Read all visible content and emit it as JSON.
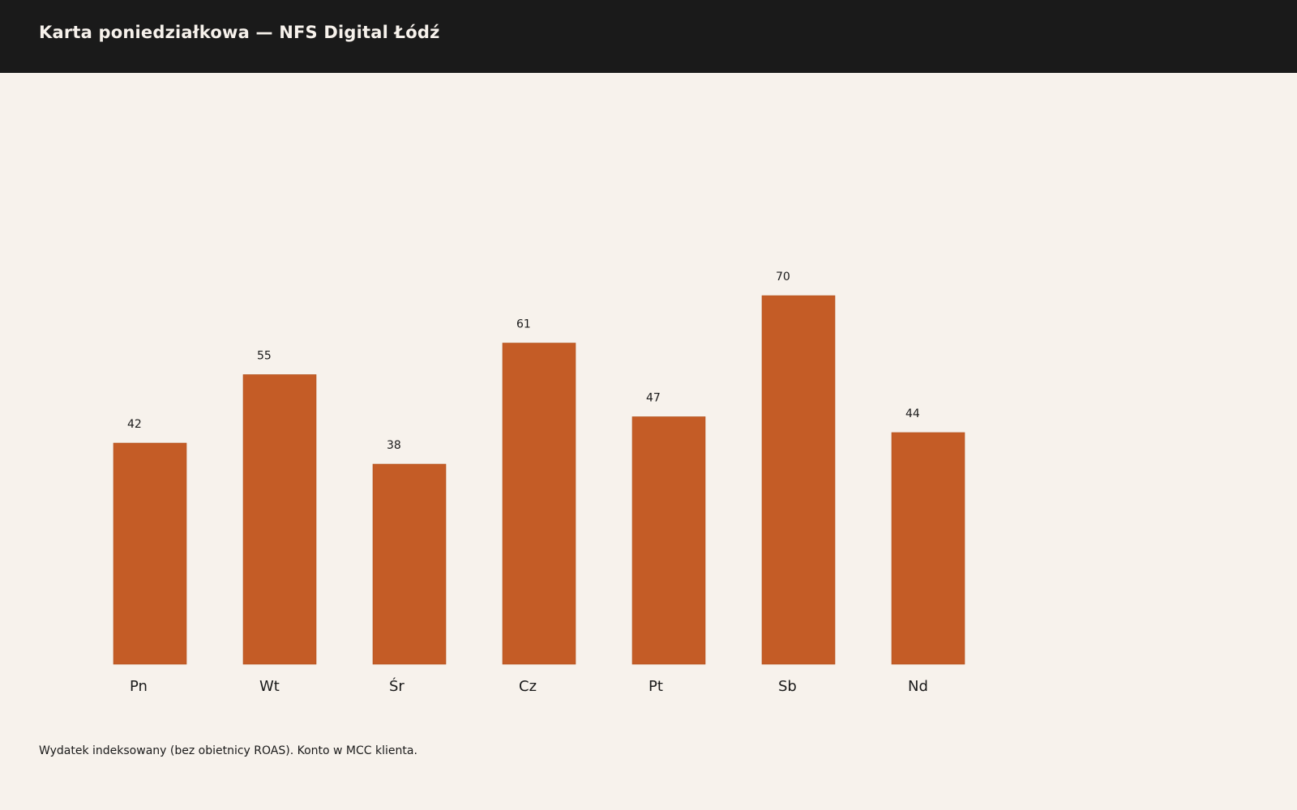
{
  "header": {
    "title": "Karta poniedziałkowa — NFS Digital Łódź"
  },
  "chart_data": {
    "type": "bar",
    "categories": [
      "Pn",
      "Wt",
      "Śr",
      "Cz",
      "Pt",
      "Sb",
      "Nd"
    ],
    "values": [
      42,
      55,
      38,
      61,
      47,
      70,
      44
    ],
    "title": "",
    "xlabel": "",
    "ylabel": "",
    "ylim": [
      0,
      100
    ],
    "grid": false,
    "bar_color": "#c45c26",
    "data_labels": true
  },
  "footer": {
    "note": "Wydatek indeksowany (bez obietnicy ROAS). Konto w MCC klienta."
  }
}
